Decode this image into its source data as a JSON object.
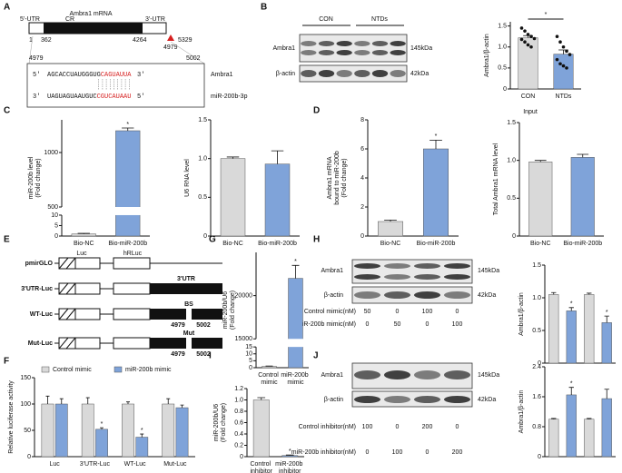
{
  "letters": [
    "A",
    "B",
    "C",
    "D",
    "E",
    "F",
    "G",
    "H",
    "I",
    "J"
  ],
  "panel_a": {
    "title": "Ambra1 mRNA",
    "utr5": "5'-UTR",
    "cr": "CR",
    "utr3": "3'-UTR",
    "positions": [
      1,
      362,
      4264,
      5329,
      4979
    ],
    "site_start": 4979,
    "site_end": 5002,
    "target": {
      "left": "5'",
      "seq": "AGCACCUAUGGGUG",
      "seq_red": "CAGUAUUA",
      "right": "3'",
      "name": "Ambra1"
    },
    "mirna": {
      "left": "3'",
      "seq": "UAGUAGUAAUGUC",
      "seq_red": "CGUCAUAAU",
      "right": "5'",
      "name": "miR-200b-3p"
    }
  },
  "blot_b": {
    "groups": [
      "CON",
      "NTDs"
    ],
    "rows": [
      "Ambra1",
      "β-actin"
    ],
    "sizes": [
      "145kDa",
      "42kDa"
    ]
  },
  "panel_e": {
    "constructs": [
      "pmirGLO",
      "3'UTR-Luc",
      "WT-Luc",
      "Mut-Luc"
    ],
    "luc": "Luc",
    "hrluc": "hRLuc",
    "utr": "3'UTR",
    "bs": "BS",
    "mut": "Mut",
    "wt_positions": [
      4979,
      5002
    ],
    "mut_positions": [
      4979,
      5002
    ]
  },
  "blot_h": {
    "rows": [
      "Ambra1",
      "β-actin"
    ],
    "sizes": [
      "145kDa",
      "42kDa"
    ],
    "conditions": [
      {
        "label": "Control mimic(nM)",
        "doses": [
          50,
          0,
          100,
          0
        ]
      },
      {
        "label": "miR-200b mimic(nM)",
        "doses": [
          0,
          50,
          0,
          100
        ]
      }
    ]
  },
  "blot_j": {
    "rows": [
      "Ambra1",
      "β-actin"
    ],
    "sizes": [
      "145kDa",
      "42kDa"
    ],
    "conditions": [
      {
        "label": "Control inhibitor(nM)",
        "doses": [
          100,
          0,
          200,
          0
        ]
      },
      {
        "label": "miR-200b inhibitor(nM)",
        "doses": [
          0,
          100,
          0,
          200
        ]
      }
    ]
  },
  "chart_data": [
    {
      "type": "bar",
      "ylabel": [
        "Ambra1/β-actin"
      ],
      "categories": [
        "CON",
        "NTDs"
      ],
      "values": [
        1.22,
        0.83
      ],
      "errors": [
        0.05,
        0.1
      ],
      "colors": [
        "#d9d9d9",
        "#7fa3d9"
      ],
      "points": [
        [
          1.45,
          1.38,
          1.3,
          1.25,
          1.2,
          1.18,
          1.12,
          1.05,
          1.0
        ],
        [
          1.25,
          1.12,
          1.0,
          0.9,
          0.82,
          0.7,
          0.6,
          0.55,
          0.5
        ]
      ],
      "ylim": [
        0,
        1.6
      ],
      "yticks": [
        0,
        0.5,
        {
          "value": 1,
          "label": "1.0"
        },
        1.5
      ],
      "bracket": "*"
    },
    {
      "type": "bar",
      "ylabel": [
        "miR-200b level",
        "(Fold change)"
      ],
      "categories": [
        "Bio-NC",
        "Bio-miR-200b"
      ],
      "values": [
        1,
        1200
      ],
      "errors": [
        0.3,
        25
      ],
      "colors": [
        "#d9d9d9",
        "#7fa3d9"
      ],
      "ylim": [
        0,
        1300
      ],
      "ybreak": [
        10,
        500
      ],
      "yticks": [
        0,
        5,
        10,
        500,
        1000
      ],
      "significance": [
        null,
        "*"
      ]
    },
    {
      "type": "bar",
      "ylabel": [
        "U6 RNA level"
      ],
      "categories": [
        "Bio-NC",
        "Bio-miR-200b"
      ],
      "values": [
        1.0,
        0.93
      ],
      "errors": [
        0.02,
        0.17
      ],
      "colors": [
        "#d9d9d9",
        "#7fa3d9"
      ],
      "ylim": [
        0,
        1.5
      ],
      "yticks": [
        0,
        0.5,
        {
          "value": 1,
          "label": "1.0"
        },
        1.5
      ]
    },
    {
      "type": "bar",
      "ylabel": [
        "Ambra1 mRNA",
        "bound to miR-200b",
        "(Fold change)"
      ],
      "categories": [
        "Bio-NC",
        "Bio-miR-200b"
      ],
      "values": [
        1,
        6
      ],
      "errors": [
        0.1,
        0.6
      ],
      "colors": [
        "#d9d9d9",
        "#7fa3d9"
      ],
      "ylim": [
        0,
        8
      ],
      "yticks": [
        0,
        2,
        4,
        6,
        8
      ],
      "significance": [
        null,
        "*"
      ]
    },
    {
      "type": "bar",
      "title": "Input",
      "ylabel": [
        "Total Ambra1 mRNA level"
      ],
      "categories": [
        "Bio-NC",
        "Bio-miR-200b"
      ],
      "values": [
        0.98,
        1.04
      ],
      "errors": [
        0.02,
        0.04
      ],
      "colors": [
        "#d9d9d9",
        "#7fa3d9"
      ],
      "ylim": [
        0,
        1.5
      ],
      "yticks": [
        0,
        0.5,
        {
          "value": 1,
          "label": "1.0"
        },
        1.5
      ]
    },
    {
      "type": "bar",
      "ylabel": [
        "miR-200b/U6",
        "(Fold change)"
      ],
      "categories": [
        "Control mimic",
        "miR-200b mimic"
      ],
      "values": [
        1,
        22000
      ],
      "errors": [
        0.2,
        1500
      ],
      "colors": [
        "#d9d9d9",
        "#7fa3d9"
      ],
      "ylim": [
        0,
        25000
      ],
      "ybreak": [
        15,
        15000
      ],
      "yticks": [
        0,
        5,
        10,
        15,
        15000,
        20000
      ],
      "significance": [
        null,
        "*"
      ]
    },
    {
      "type": "bar",
      "ylabel": [
        "Ambra1/β-actin"
      ],
      "categories": [
        null,
        null,
        null,
        null
      ],
      "values": [
        1.05,
        0.8,
        1.05,
        0.62
      ],
      "errors": [
        0.03,
        0.05,
        0.02,
        0.1
      ],
      "colors": [
        "#d9d9d9",
        "#7fa3d9",
        "#d9d9d9",
        "#7fa3d9"
      ],
      "ylim": [
        0,
        1.5
      ],
      "yticks": [
        0,
        0.5,
        {
          "value": 1,
          "label": "1.0"
        },
        1.5
      ],
      "significance": [
        null,
        "*",
        null,
        "*"
      ]
    },
    {
      "type": "bar",
      "ylabel": [
        "Relative luciferase activity"
      ],
      "categories": [
        "Luc",
        "3'UTR-Luc",
        "WT-Luc",
        "Mut-Luc"
      ],
      "series": [
        {
          "name": "Control mimic",
          "color": "#d9d9d9",
          "values": [
            100,
            100,
            100,
            100
          ],
          "errors": [
            15,
            12,
            4,
            10
          ]
        },
        {
          "name": "miR-200b mimic",
          "color": "#7fa3d9",
          "values": [
            100,
            52,
            37,
            93
          ],
          "errors": [
            10,
            3,
            6,
            5
          ],
          "significance": [
            null,
            "*",
            "*",
            null
          ]
        }
      ],
      "ylim": [
        0,
        150
      ],
      "yticks": [
        0,
        50,
        100,
        150
      ],
      "legend": "top"
    },
    {
      "type": "bar",
      "ylabel": [
        "miR-200b/U6",
        "(Fold change)"
      ],
      "categories": [
        "Control inhibitor",
        "miR-200b inhibitor"
      ],
      "values": [
        1.0,
        0.02
      ],
      "errors": [
        0.04,
        0.01
      ],
      "colors": [
        "#d9d9d9",
        "#7fa3d9"
      ],
      "ylim": [
        0,
        1.2
      ],
      "yticks": [
        0,
        0.2,
        0.4,
        0.6,
        0.8,
        {
          "value": 1,
          "label": "1.0"
        },
        1.2
      ],
      "significance": [
        null,
        "*"
      ]
    },
    {
      "type": "bar",
      "ylabel": [
        "Ambra1/β-actin"
      ],
      "categories": [
        null,
        null,
        null,
        null
      ],
      "values": [
        1.0,
        1.65,
        1.0,
        1.55
      ],
      "errors": [
        0.02,
        0.2,
        0.02,
        0.25
      ],
      "colors": [
        "#d9d9d9",
        "#7fa3d9",
        "#d9d9d9",
        "#7fa3d9"
      ],
      "ylim": [
        0,
        2.4
      ],
      "yticks": [
        0,
        0.8,
        1.6,
        2.4
      ],
      "significance": [
        null,
        "*",
        null,
        null
      ]
    }
  ]
}
